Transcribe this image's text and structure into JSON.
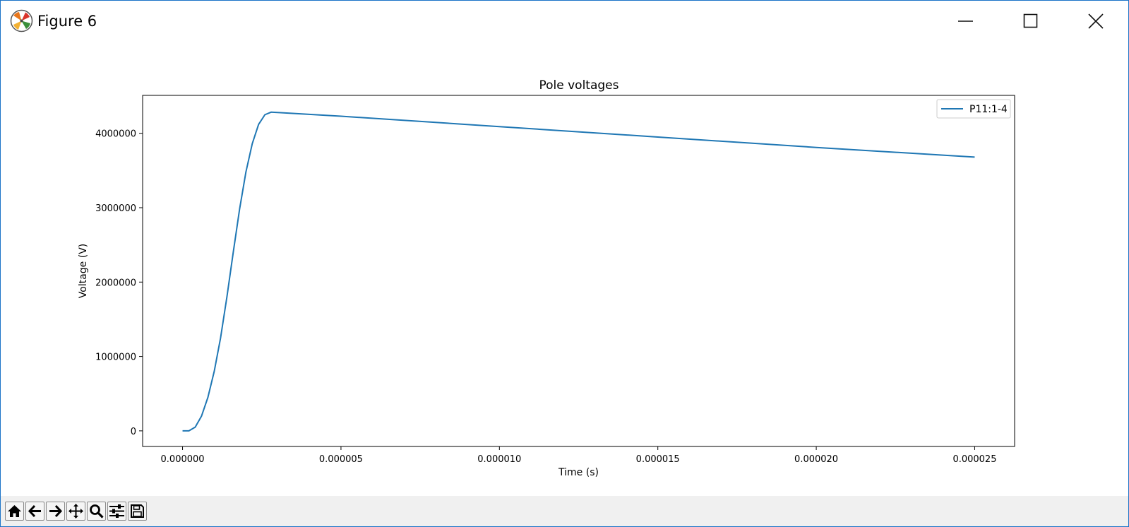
{
  "window": {
    "title": "Figure 6",
    "controls": {
      "minimize": "minimize-icon",
      "maximize": "maximize-icon",
      "close": "close-icon"
    }
  },
  "colors": {
    "line": "#1f77b4",
    "frame_border": "#1a73c8",
    "toolbar_bg": "#f0f0f0"
  },
  "toolbar": {
    "buttons": [
      {
        "name": "home-icon"
      },
      {
        "name": "back-arrow-icon"
      },
      {
        "name": "forward-arrow-icon"
      },
      {
        "name": "pan-icon"
      },
      {
        "name": "zoom-icon"
      },
      {
        "name": "subplots-config-icon"
      },
      {
        "name": "save-icon"
      }
    ]
  },
  "chart_data": {
    "type": "line",
    "title": "Pole voltages",
    "xlabel": "Time (s)",
    "ylabel": "Voltage (V)",
    "xlim": [
      -1.26e-06,
      2.626e-05
    ],
    "ylim": [
      -210000,
      4510000
    ],
    "xticks": [
      0.0,
      5e-06,
      1e-05,
      1.5e-05,
      2e-05,
      2.5e-05
    ],
    "xtick_labels": [
      "0.000000",
      "0.000005",
      "0.000010",
      "0.000015",
      "0.000020",
      "0.000025"
    ],
    "yticks": [
      0,
      1000000,
      2000000,
      3000000,
      4000000
    ],
    "ytick_labels": [
      "0",
      "1000000",
      "2000000",
      "3000000",
      "4000000"
    ],
    "grid": false,
    "legend": "top-right",
    "series": [
      {
        "name": "P11:1-4",
        "x": [
          0.0,
          2e-07,
          4e-07,
          6e-07,
          8e-07,
          1e-06,
          1.2e-06,
          1.4e-06,
          1.6e-06,
          1.8e-06,
          2e-06,
          2.2e-06,
          2.4e-06,
          2.6e-06,
          2.8e-06,
          3e-06,
          5e-06,
          1e-05,
          1.5e-05,
          2e-05,
          2.5e-05
        ],
        "y": [
          0,
          0,
          50000,
          200000,
          450000,
          800000,
          1250000,
          1800000,
          2400000,
          2980000,
          3480000,
          3860000,
          4120000,
          4250000,
          4285000,
          4280000,
          4230000,
          4090000,
          3950000,
          3810000,
          3680000
        ]
      }
    ]
  }
}
